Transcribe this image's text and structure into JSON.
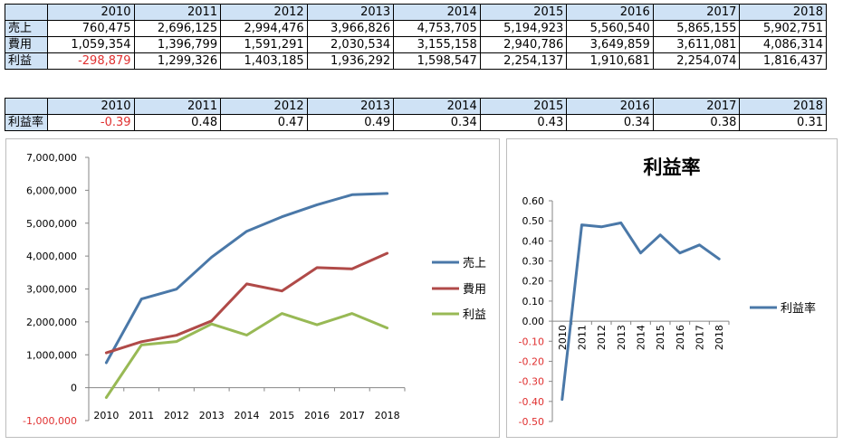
{
  "table_main": {
    "years": [
      "2010",
      "2011",
      "2012",
      "2013",
      "2014",
      "2015",
      "2016",
      "2017",
      "2018"
    ],
    "rows": [
      {
        "label": "売上",
        "values": [
          "760,475",
          "2,696,125",
          "2,994,476",
          "3,966,826",
          "4,753,705",
          "5,194,923",
          "5,560,540",
          "5,865,155",
          "5,902,751"
        ]
      },
      {
        "label": "費用",
        "values": [
          "1,059,354",
          "1,396,799",
          "1,591,291",
          "2,030,534",
          "3,155,158",
          "2,940,786",
          "3,649,859",
          "3,611,081",
          "4,086,314"
        ]
      },
      {
        "label": "利益",
        "values": [
          "-298,879",
          "1,299,326",
          "1,403,185",
          "1,936,292",
          "1,598,547",
          "2,254,137",
          "1,910,681",
          "2,254,074",
          "1,816,437"
        ]
      }
    ]
  },
  "table_ratio": {
    "years": [
      "2010",
      "2011",
      "2012",
      "2013",
      "2014",
      "2015",
      "2016",
      "2017",
      "2018"
    ],
    "label": "利益率",
    "values": [
      "-0.39",
      "0.48",
      "0.47",
      "0.49",
      "0.34",
      "0.43",
      "0.34",
      "0.38",
      "0.31"
    ]
  },
  "colors": {
    "uriage": "#4a78a8",
    "hiyou": "#b04a48",
    "rieki": "#98b955",
    "ratio": "#4a78a8",
    "negative": "#e03030",
    "axis": "#868686",
    "grid": "#d9d9d9"
  },
  "chart_data": [
    {
      "type": "line",
      "title": "",
      "categories": [
        "2010",
        "2011",
        "2012",
        "2013",
        "2014",
        "2015",
        "2016",
        "2017",
        "2018"
      ],
      "series": [
        {
          "name": "売上",
          "values": [
            760475,
            2696125,
            2994476,
            3966826,
            4753705,
            5194923,
            5560540,
            5865155,
            5902751
          ]
        },
        {
          "name": "費用",
          "values": [
            1059354,
            1396799,
            1591291,
            2030534,
            3155158,
            2940786,
            3649859,
            3611081,
            4086314
          ]
        },
        {
          "name": "利益",
          "values": [
            -298879,
            1299326,
            1403185,
            1936292,
            1598547,
            2254137,
            1910681,
            2254074,
            1816437
          ]
        }
      ],
      "ylim": [
        -1000000,
        7000000
      ],
      "yticks": [
        "7,000,000",
        "6,000,000",
        "5,000,000",
        "4,000,000",
        "3,000,000",
        "2,000,000",
        "1,000,000",
        "0",
        "-1,000,000"
      ],
      "legend": "right",
      "grid": false
    },
    {
      "type": "line",
      "title": "利益率",
      "categories": [
        "2010",
        "2011",
        "2012",
        "2013",
        "2014",
        "2015",
        "2016",
        "2017",
        "2018"
      ],
      "series": [
        {
          "name": "利益率",
          "values": [
            -0.39,
            0.48,
            0.47,
            0.49,
            0.34,
            0.43,
            0.34,
            0.38,
            0.31
          ]
        }
      ],
      "ylim": [
        -0.5,
        0.6
      ],
      "yticks": [
        "0.60",
        "0.50",
        "0.40",
        "0.30",
        "0.20",
        "0.10",
        "0.00",
        "-0.10",
        "-0.20",
        "-0.30",
        "-0.40",
        "-0.50"
      ],
      "legend": "right",
      "grid": false
    }
  ]
}
